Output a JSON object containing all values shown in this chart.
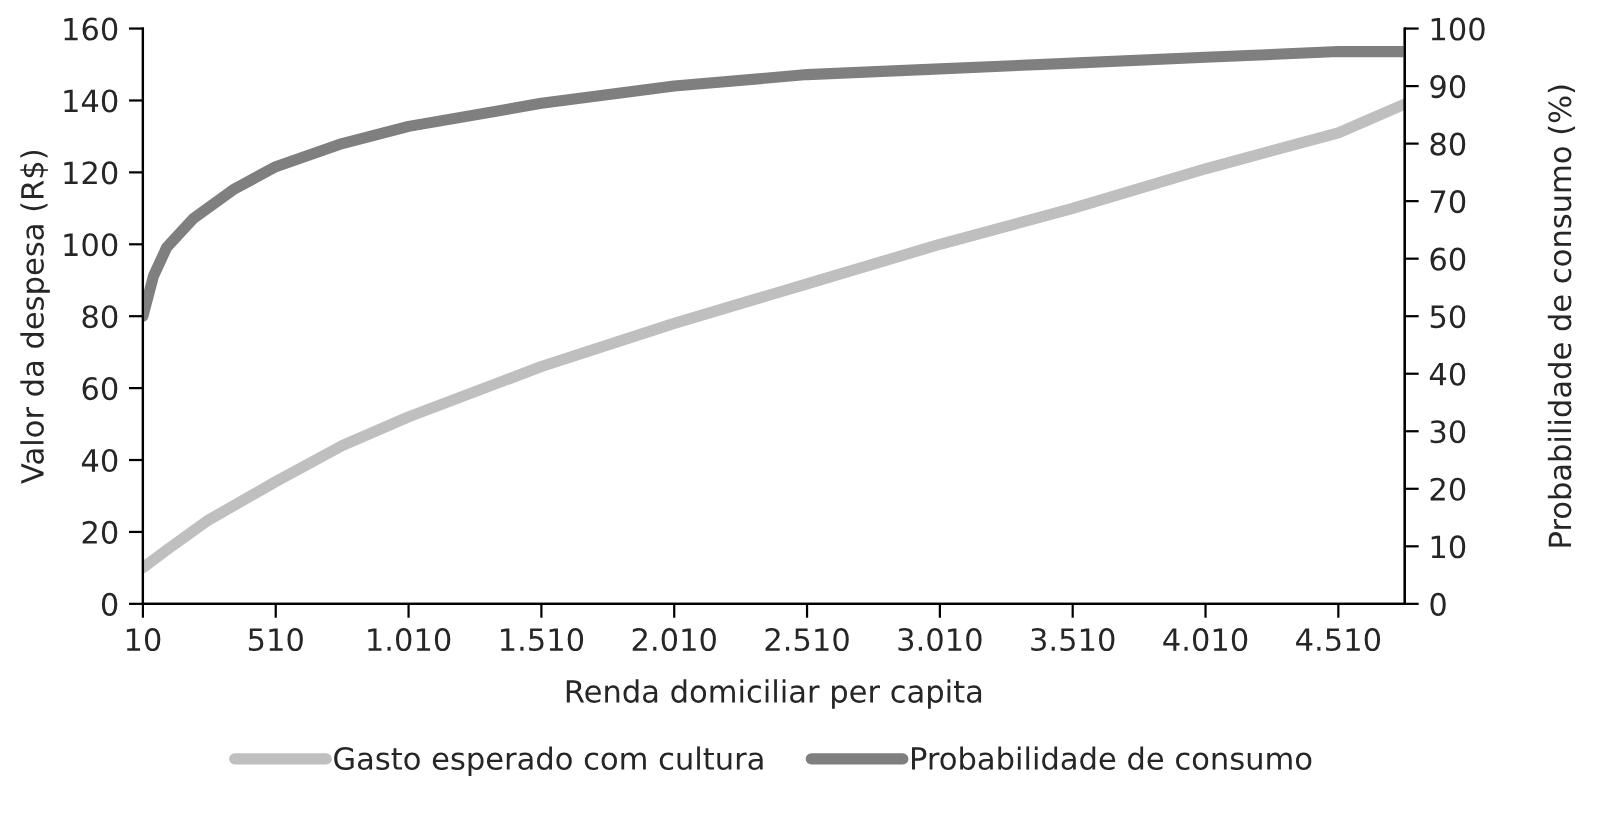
{
  "chart_data": {
    "type": "line",
    "xlabel": "Renda domiciliar per capita",
    "ylabel": "Valor da despesa (R$)",
    "y2label": "Probabilidade de consumo (%)",
    "xlim": [
      10,
      4760
    ],
    "xticks": [
      10,
      510,
      {
        "value": 1010,
        "label": "1.010"
      },
      {
        "value": 1510,
        "label": "1.510"
      },
      {
        "value": 2010,
        "label": "2.010"
      },
      {
        "value": 2510,
        "label": "2.510"
      },
      {
        "value": 3010,
        "label": "3.010"
      },
      {
        "value": 3510,
        "label": "3.510"
      },
      {
        "value": 4010,
        "label": "4.010"
      },
      {
        "value": 4510,
        "label": "4.510"
      }
    ],
    "ylim": [
      0,
      160
    ],
    "yticks": [
      0,
      20,
      40,
      60,
      80,
      100,
      120,
      140,
      160
    ],
    "y2lim": [
      0,
      100
    ],
    "y2ticks": [
      0,
      10,
      20,
      30,
      40,
      50,
      60,
      70,
      80,
      90,
      100
    ],
    "grid": false,
    "legend": "bottom",
    "marker": "none",
    "line_style": "solid",
    "series": [
      {
        "name": "Gasto esperado com cultura",
        "color": "#bfbfbf",
        "x": [
          10,
          100,
          250,
          510,
          760,
          1010,
          1510,
          2010,
          2510,
          3010,
          3510,
          4010,
          4510,
          4760
        ],
        "values": [
          10,
          15,
          23,
          34,
          44,
          52,
          66,
          78,
          89,
          100,
          110,
          121,
          131,
          139
        ]
      },
      {
        "name": "Probabilidade de consumo",
        "color": "#7f7f7f",
        "axis": "y2",
        "x": [
          10,
          50,
          100,
          200,
          350,
          510,
          760,
          1010,
          1510,
          2010,
          2510,
          3010,
          3510,
          4010,
          4510,
          4760
        ],
        "values": [
          50,
          57,
          62,
          67,
          72,
          76,
          80,
          83,
          87,
          90,
          92,
          93,
          94,
          95,
          96,
          96
        ]
      }
    ]
  }
}
